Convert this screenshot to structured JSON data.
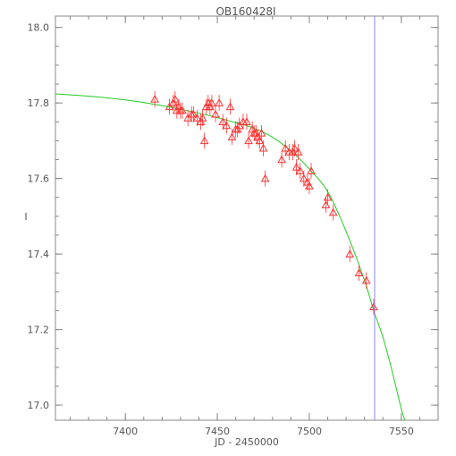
{
  "chart_data": {
    "type": "scatter",
    "title": "OB160428I",
    "xlabel": "JD - 2450000",
    "ylabel": "I",
    "xlim": [
      7362,
      7570
    ],
    "ylim": [
      18.03,
      16.96
    ],
    "y_inverted": true,
    "grid": false,
    "xticks": [
      7400,
      7450,
      7500,
      7550
    ],
    "yticks": [
      17.0,
      17.2,
      17.4,
      17.6,
      17.8,
      18.0
    ],
    "xtick_labels": [
      "7400",
      "7450",
      "7500",
      "7550"
    ],
    "ytick_labels": [
      "17.0",
      "17.2",
      "17.4",
      "17.6",
      "17.8",
      "18.0"
    ],
    "vertical_line": {
      "x": 7535.5,
      "color": "#8888ff"
    },
    "model_curve": {
      "color": "#22cc22",
      "x": [
        7362,
        7380,
        7400,
        7420,
        7440,
        7460,
        7470,
        7480,
        7490,
        7500,
        7510,
        7520,
        7530,
        7535,
        7540,
        7545,
        7550,
        7552
      ],
      "y": [
        17.824,
        17.818,
        17.808,
        17.793,
        17.773,
        17.748,
        17.733,
        17.709,
        17.673,
        17.625,
        17.565,
        17.46,
        17.33,
        17.25,
        17.18,
        17.09,
        16.99,
        16.96
      ]
    },
    "series": [
      {
        "marker": "triangle-open",
        "color": "#ff3333",
        "x": [
          7416,
          7424,
          7426,
          7427,
          7428,
          7429,
          7430,
          7431,
          7434,
          7436,
          7437,
          7439,
          7441,
          7442,
          7443,
          7444,
          7445,
          7446,
          7447,
          7449,
          7451,
          7453,
          7455,
          7457,
          7458,
          7460,
          7461,
          7462,
          7464,
          7466,
          7467,
          7469,
          7470,
          7471,
          7472,
          7473,
          7474,
          7475,
          7476,
          7485,
          7487,
          7489,
          7491,
          7492,
          7493,
          7494,
          7495,
          7497,
          7499,
          7500,
          7501,
          7509,
          7510,
          7513,
          7522,
          7527,
          7531,
          7535
        ],
        "y": [
          17.81,
          17.79,
          17.8,
          17.81,
          17.78,
          17.79,
          17.78,
          17.78,
          17.76,
          17.77,
          17.77,
          17.76,
          17.75,
          17.76,
          17.7,
          17.79,
          17.8,
          17.79,
          17.8,
          17.77,
          17.8,
          17.75,
          17.74,
          17.79,
          17.71,
          17.73,
          17.73,
          17.74,
          17.75,
          17.75,
          17.7,
          17.73,
          17.72,
          17.72,
          17.71,
          17.7,
          17.72,
          17.68,
          17.6,
          17.65,
          17.68,
          17.67,
          17.67,
          17.68,
          17.63,
          17.67,
          17.62,
          17.6,
          17.59,
          17.58,
          17.62,
          17.53,
          17.55,
          17.51,
          17.4,
          17.35,
          17.33,
          17.26
        ]
      }
    ]
  }
}
